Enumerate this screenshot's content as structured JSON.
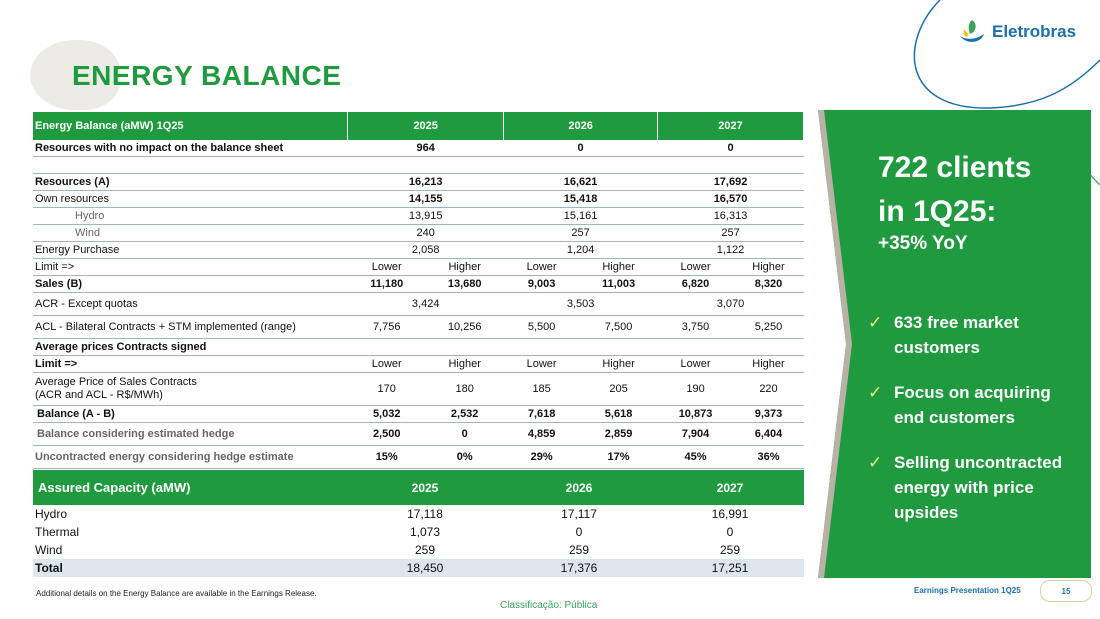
{
  "header": {
    "title": "ENERGY BALANCE",
    "logo_text": "Eletrobras"
  },
  "energy_balance": {
    "header": [
      "Energy Balance (aMW) 1Q25",
      "2025",
      "2026",
      "2027"
    ],
    "resources_no_impact": {
      "label": "Resources with no impact on the balance sheet",
      "values": [
        "964",
        "0",
        "0"
      ]
    },
    "resources": {
      "label": "Resources (A)",
      "values": [
        "16,213",
        "16,621",
        "17,692"
      ]
    },
    "own_resources": {
      "label": "Own resources",
      "values": [
        "14,155",
        "15,418",
        "16,570"
      ]
    },
    "hydro": {
      "label": "Hydro",
      "values": [
        "13,915",
        "15,161",
        "16,313"
      ]
    },
    "wind": {
      "label": "Wind",
      "values": [
        "240",
        "257",
        "257"
      ]
    },
    "energy_purchase": {
      "label": "Energy Purchase",
      "values": [
        "2,058",
        "1,204",
        "1,122"
      ]
    },
    "limit": {
      "label": "Limit =>",
      "values": [
        "Lower",
        "Higher",
        "Lower",
        "Higher",
        "Lower",
        "Higher"
      ]
    },
    "sales": {
      "label": "Sales (B)",
      "values": [
        "11,180",
        "13,680",
        "9,003",
        "11,003",
        "6,820",
        "8,320"
      ]
    },
    "acr": {
      "label": "ACR - Except quotas",
      "values": [
        "3,424",
        "3,503",
        "3,070"
      ]
    },
    "acl": {
      "label": "ACL - Bilateral Contracts + STM implemented (range)",
      "values": [
        "7,756",
        "10,256",
        "5,500",
        "7,500",
        "3,750",
        "5,250"
      ]
    },
    "avg_prices_title": "Average prices Contracts signed",
    "limit2": {
      "label": "Limit =>",
      "values": [
        "Lower",
        "Higher",
        "Lower",
        "Higher",
        "Lower",
        "Higher"
      ]
    },
    "avg_price": {
      "label_line1": "Average Price of Sales Contracts",
      "label_line2": "(ACR and ACL - R$/MWh)",
      "values": [
        "170",
        "180",
        "185",
        "205",
        "190",
        "220"
      ]
    },
    "balance": {
      "label": "Balance (A - B)",
      "values": [
        "5,032",
        "2,532",
        "7,618",
        "5,618",
        "10,873",
        "9,373"
      ]
    },
    "balance_hedge": {
      "label": "Balance considering estimated hedge",
      "values": [
        "2,500",
        "0",
        "4,859",
        "2,859",
        "7,904",
        "6,404"
      ]
    },
    "uncontracted": {
      "label": "Uncontracted energy considering hedge estimate",
      "values": [
        "15%",
        "0%",
        "29%",
        "17%",
        "45%",
        "36%"
      ]
    }
  },
  "assured_capacity": {
    "header": [
      "Assured Capacity (aMW)",
      "2025",
      "2026",
      "2027"
    ],
    "rows": [
      {
        "label": "Hydro",
        "values": [
          "17,118",
          "17,117",
          "16,991"
        ]
      },
      {
        "label": "Thermal",
        "values": [
          "1,073",
          "0",
          "0"
        ]
      },
      {
        "label": "Wind",
        "values": [
          "259",
          "259",
          "259"
        ]
      }
    ],
    "total": {
      "label": "Total",
      "values": [
        "18,450",
        "17,376",
        "17,251"
      ]
    }
  },
  "panel": {
    "headline_line1": "722 clients",
    "headline_line2": "in 1Q25:",
    "yoy": "+35% YoY",
    "bullets": [
      {
        "line1": "633 free market",
        "line2": "customers"
      },
      {
        "line1": "Focus on acquiring",
        "line2": "end customers"
      },
      {
        "line1": "Selling uncontracted",
        "line2": "energy with price",
        "line3": "upsides"
      }
    ],
    "check_icon": "check-icon"
  },
  "footer": {
    "note": "Additional details on the Energy Balance are available in the Earnings Release.",
    "classification": "Classificação: Pública",
    "presentation": "Earnings Presentation 1Q25",
    "page": "15"
  },
  "colors": {
    "green": "#1f9a3e",
    "blue": "#1b6fae",
    "check": "#e9f07a"
  }
}
